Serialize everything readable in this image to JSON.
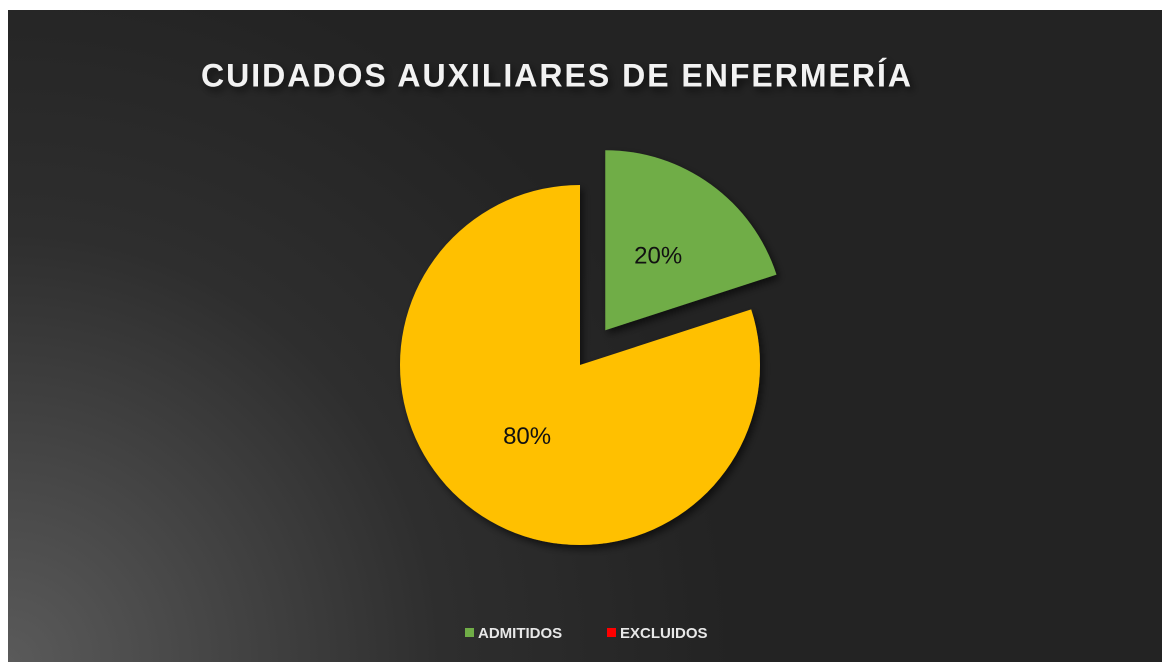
{
  "chart_data": {
    "type": "pie",
    "title": "CUIDADOS AUXILIARES DE ENFERMERÍA",
    "categories": [
      "ADMITIDOS",
      "EXCLUIDOS"
    ],
    "values": [
      20,
      80
    ],
    "value_labels": [
      "20%",
      "80%"
    ],
    "colors": [
      "#70ad47",
      "#ffc000"
    ],
    "legend_colors": [
      "#70ad47",
      "#ff0000"
    ],
    "exploded": [
      true,
      false
    ],
    "legend": "bottom"
  }
}
